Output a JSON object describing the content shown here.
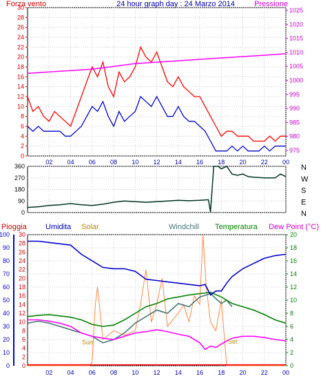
{
  "header": {
    "left_label": "Forza vento",
    "title": "24 hour graph day : 24 Marzo 2014",
    "right_label": "Pressione"
  },
  "bottom_header": {
    "pioggia": "Pioggia",
    "umidita": "Umidita",
    "solar": "Solar",
    "windchill": "Windchill",
    "temperatura": "Temperatura",
    "dewpoint": "Dew Point (°C)"
  },
  "annotations": {
    "sun_rise": "Sun",
    "sun_set": "Set"
  },
  "colors": {
    "wind_gust": "#ff0000",
    "wind_avg": "#0000cc",
    "pressure": "#ff00ff",
    "direction": "#003322",
    "humidity": "#0000cc",
    "solar": "#ff8844",
    "windchill": "#447777",
    "temperature": "#008000",
    "dewpoint": "#ff00ff",
    "rain": "#ff0000",
    "axis_left_top": "#cc0000",
    "axis_right_top": "#cc00cc",
    "axis_left_bottom": "#0000cc",
    "axis_rain": "#cc0000",
    "axis_temp": "#008000"
  },
  "chart_data": [
    {
      "type": "line",
      "x_ticks": [
        "02",
        "04",
        "06",
        "08",
        "10",
        "12",
        "14",
        "16",
        "18",
        "20",
        "22",
        "00"
      ],
      "y_left_ticks": [
        "0",
        "2",
        "4",
        "6",
        "8",
        "10",
        "12",
        "14",
        "16",
        "18",
        "20",
        "22",
        "24",
        "26",
        "28",
        "30"
      ],
      "y_right_ticks": [
        "975",
        "980",
        "985",
        "990",
        "995",
        "1000",
        "1005",
        "1010",
        "1015",
        "1020",
        "1025"
      ],
      "ylim_left": [
        0,
        30
      ],
      "ylim_right": [
        973,
        1026
      ],
      "xlim": [
        0,
        24
      ],
      "series": [
        {
          "key": "gust",
          "axis": "left",
          "color": "#ff0000",
          "x": [
            0,
            0.5,
            1,
            1.5,
            2,
            2.5,
            3,
            3.5,
            4,
            4.5,
            5,
            5.5,
            6,
            6.5,
            7,
            7.5,
            8,
            8.5,
            9,
            9.5,
            10,
            10.5,
            11,
            11.5,
            12,
            12.5,
            13,
            13.5,
            14,
            14.5,
            15,
            15.5,
            16,
            16.5,
            17,
            17.5,
            18,
            18.5,
            19,
            19.5,
            20,
            20.5,
            21,
            21.5,
            22,
            22.5,
            23,
            23.5,
            24
          ],
          "y": [
            12,
            9,
            10,
            8,
            7,
            9,
            8,
            7,
            6,
            9,
            12,
            15,
            18,
            16,
            19,
            14,
            12,
            17,
            15,
            16,
            18,
            22,
            20,
            19,
            21,
            18,
            15,
            14,
            16,
            14,
            13,
            12,
            12,
            10,
            8,
            6,
            4,
            5,
            5,
            4,
            4,
            4,
            3,
            3,
            3,
            4,
            3,
            4,
            4
          ]
        },
        {
          "key": "avg",
          "axis": "left",
          "color": "#0000cc",
          "x": [
            0,
            0.5,
            1,
            1.5,
            2,
            2.5,
            3,
            3.5,
            4,
            4.5,
            5,
            5.5,
            6,
            6.5,
            7,
            7.5,
            8,
            8.5,
            9,
            9.5,
            10,
            10.5,
            11,
            11.5,
            12,
            12.5,
            13,
            13.5,
            14,
            14.5,
            15,
            15.5,
            16,
            16.5,
            17,
            17.5,
            18,
            18.5,
            19,
            19.5,
            20,
            20.5,
            21,
            21.5,
            22,
            22.5,
            23,
            23.5,
            24
          ],
          "y": [
            6,
            5,
            6,
            5,
            5,
            5,
            5,
            4,
            4,
            5,
            6,
            8,
            10,
            9,
            11,
            8,
            6,
            9,
            7,
            8,
            9,
            12,
            11,
            10,
            12,
            10,
            8,
            8,
            10,
            8,
            7,
            7,
            6,
            5,
            3,
            1,
            1,
            1,
            2,
            1,
            2,
            1,
            1,
            1,
            2,
            1,
            2,
            2,
            2
          ]
        },
        {
          "key": "pressure",
          "axis": "right",
          "color": "#ff00ff",
          "x": [
            0,
            2,
            4,
            6,
            8,
            10,
            12,
            14,
            16,
            18,
            20,
            22,
            24
          ],
          "y": [
            1002.5,
            1003,
            1003.5,
            1004,
            1005,
            1006,
            1006.5,
            1007,
            1007.5,
            1008,
            1008.5,
            1009,
            1009.5
          ]
        }
      ]
    },
    {
      "type": "line",
      "y_ticks": [
        "360",
        "270",
        "180",
        "90",
        "0"
      ],
      "y_right_labels": [
        "N",
        "W",
        "S",
        "E",
        "N"
      ],
      "ylim": [
        0,
        360
      ],
      "xlim": [
        0,
        24
      ],
      "series": [
        {
          "key": "direction",
          "color": "#003322",
          "x": [
            0,
            1,
            2,
            3,
            4,
            5,
            6,
            7,
            8,
            9,
            10,
            11,
            12,
            13,
            14,
            15,
            16,
            16.8,
            17,
            17.3,
            17.7,
            18,
            18.5,
            19,
            19.5,
            20,
            20.5,
            21,
            22,
            23,
            23.5,
            24
          ],
          "y": [
            40,
            45,
            55,
            60,
            70,
            60,
            55,
            65,
            80,
            90,
            85,
            80,
            85,
            90,
            95,
            92,
            95,
            100,
            5,
            360,
            360,
            340,
            360,
            300,
            290,
            300,
            280,
            275,
            270,
            270,
            300,
            280
          ]
        }
      ]
    },
    {
      "type": "line",
      "x_ticks": [
        "02",
        "04",
        "06",
        "08",
        "10",
        "12",
        "14",
        "16",
        "18",
        "20",
        "22",
        "00"
      ],
      "y_humidity_ticks": [
        "0",
        "10",
        "20",
        "30",
        "40",
        "50",
        "60",
        "70",
        "80",
        "90",
        "100"
      ],
      "y_rain_ticks": [
        "0",
        "2",
        "4",
        "6",
        "8",
        "10",
        "12",
        "14",
        "16",
        "18",
        "20",
        "22",
        "24",
        "26",
        "28",
        "30"
      ],
      "y_temp_ticks": [
        "0",
        "2",
        "4",
        "6",
        "8",
        "10",
        "12",
        "14",
        "16",
        "18",
        "20"
      ],
      "ylim_humidity": [
        0,
        100
      ],
      "ylim_rain": [
        0,
        30
      ],
      "ylim_temp": [
        0,
        20
      ],
      "xlim": [
        0,
        24
      ],
      "series": [
        {
          "key": "humidity",
          "axis": "humidity",
          "color": "#0000cc",
          "x": [
            0,
            1,
            2,
            3,
            4,
            5,
            6,
            7,
            8,
            9,
            10,
            11,
            12,
            13,
            14,
            15,
            16,
            16.5,
            17,
            17.5,
            18,
            18.5,
            19,
            20,
            21,
            22,
            23,
            24
          ],
          "y": [
            95,
            95,
            94,
            93,
            92,
            85,
            80,
            75,
            74,
            74,
            72,
            66,
            65,
            64,
            63,
            62,
            61,
            62,
            54,
            57,
            57,
            63,
            68,
            74,
            78,
            82,
            84,
            85
          ]
        },
        {
          "key": "temperature",
          "axis": "temp",
          "color": "#008000",
          "x": [
            0,
            1,
            2,
            3,
            4,
            5,
            6,
            7,
            8,
            9,
            10,
            11,
            12,
            13,
            14,
            15,
            16,
            17,
            18,
            19,
            20,
            21,
            22,
            23,
            24
          ],
          "y": [
            7.5,
            7.7,
            7.8,
            7.6,
            7.4,
            7,
            6.3,
            6,
            6.2,
            7,
            8,
            9,
            9.5,
            10.2,
            10.5,
            10.8,
            11,
            11.2,
            10.5,
            9.5,
            9,
            8.5,
            7.8,
            7,
            6.5
          ]
        },
        {
          "key": "windchill",
          "axis": "temp",
          "color": "#447777",
          "x": [
            0,
            1,
            2,
            3,
            4,
            5,
            6,
            7,
            8,
            9,
            10,
            11,
            12,
            13,
            14,
            15,
            16,
            17,
            18,
            18.5,
            19
          ],
          "y": [
            6.5,
            6.8,
            6.5,
            6,
            5.5,
            5,
            4.5,
            3.5,
            4,
            5,
            6.5,
            7.5,
            8.5,
            8,
            9.5,
            9,
            10.5,
            11,
            9.5,
            10,
            9
          ]
        },
        {
          "key": "dewpoint",
          "axis": "temp",
          "color": "#ff00ff",
          "x": [
            0,
            1,
            2,
            3,
            4,
            5,
            6,
            7,
            8,
            9,
            10,
            11,
            12,
            13,
            14,
            15,
            16,
            16.5,
            17,
            17.5,
            18,
            18.5,
            19,
            20,
            21,
            22,
            23,
            24
          ],
          "y": [
            7,
            7,
            6.8,
            6.5,
            6,
            5,
            4.5,
            4.2,
            4,
            4.5,
            5,
            5.2,
            5.5,
            5.2,
            4.8,
            4.5,
            3.5,
            2.5,
            3,
            2.8,
            3.3,
            3.8,
            4.2,
            4.5,
            4.5,
            4.3,
            4,
            3.8
          ]
        },
        {
          "key": "solar",
          "axis": "rain",
          "color": "#ff8844",
          "x": [
            0,
            5,
            5.8,
            6,
            6.3,
            6.5,
            7,
            8,
            9,
            10,
            10.5,
            11,
            11.5,
            12,
            12.5,
            13,
            14,
            14.5,
            15,
            15.5,
            16,
            16.3,
            16.6,
            17,
            17.5,
            18,
            18.5,
            24
          ],
          "y": [
            0,
            0,
            0,
            1,
            14,
            18,
            6,
            8,
            7,
            8,
            14,
            22,
            10,
            14,
            20,
            9,
            12,
            14,
            10,
            16,
            14,
            30,
            18,
            10,
            8,
            15,
            0,
            0
          ]
        },
        {
          "key": "rain",
          "axis": "rain",
          "color": "#ff0000",
          "x": [
            0,
            24
          ],
          "y": [
            0.2,
            0.2
          ]
        }
      ]
    }
  ]
}
